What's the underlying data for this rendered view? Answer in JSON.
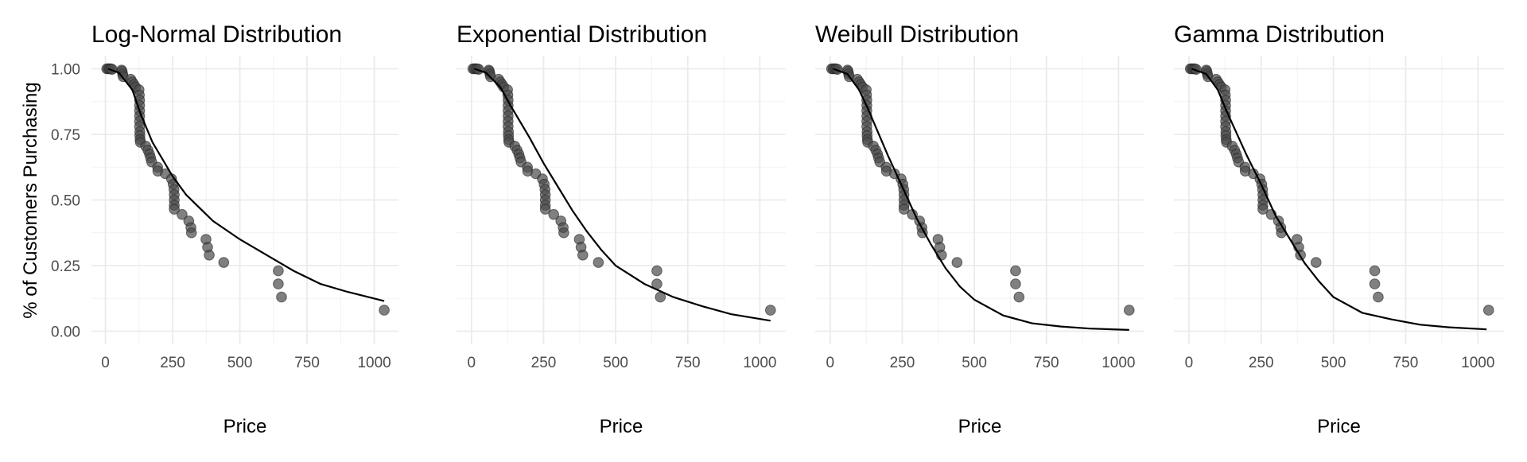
{
  "chart_data": [
    {
      "type": "scatter",
      "title": "Log-Normal Distribution",
      "xlabel": "Price",
      "ylabel": "% of Customers Purchasing",
      "curve": [
        [
          10,
          1.0
        ],
        [
          50,
          0.985
        ],
        [
          100,
          0.92
        ],
        [
          130,
          0.83
        ],
        [
          175,
          0.72
        ],
        [
          250,
          0.59
        ],
        [
          300,
          0.52
        ],
        [
          400,
          0.42
        ],
        [
          500,
          0.35
        ],
        [
          600,
          0.29
        ],
        [
          700,
          0.23
        ],
        [
          800,
          0.18
        ],
        [
          900,
          0.15
        ],
        [
          1037,
          0.115
        ]
      ]
    },
    {
      "type": "scatter",
      "title": "Exponential Distribution",
      "xlabel": "Price",
      "curve": [
        [
          10,
          1.0
        ],
        [
          50,
          0.985
        ],
        [
          100,
          0.93
        ],
        [
          130,
          0.87
        ],
        [
          200,
          0.74
        ],
        [
          250,
          0.64
        ],
        [
          300,
          0.55
        ],
        [
          350,
          0.46
        ],
        [
          400,
          0.38
        ],
        [
          450,
          0.31
        ],
        [
          500,
          0.25
        ],
        [
          600,
          0.18
        ],
        [
          700,
          0.13
        ],
        [
          800,
          0.095
        ],
        [
          900,
          0.065
        ],
        [
          1037,
          0.04
        ]
      ]
    },
    {
      "type": "scatter",
      "title": "Weibull Distribution",
      "xlabel": "Price",
      "curve": [
        [
          10,
          1.0
        ],
        [
          60,
          0.98
        ],
        [
          100,
          0.92
        ],
        [
          130,
          0.85
        ],
        [
          200,
          0.67
        ],
        [
          250,
          0.55
        ],
        [
          300,
          0.43
        ],
        [
          350,
          0.33
        ],
        [
          400,
          0.24
        ],
        [
          450,
          0.17
        ],
        [
          500,
          0.12
        ],
        [
          600,
          0.06
        ],
        [
          700,
          0.03
        ],
        [
          800,
          0.018
        ],
        [
          900,
          0.01
        ],
        [
          1037,
          0.005
        ]
      ]
    },
    {
      "type": "scatter",
      "title": "Gamma Distribution",
      "xlabel": "Price",
      "curve": [
        [
          10,
          1.0
        ],
        [
          60,
          0.98
        ],
        [
          100,
          0.92
        ],
        [
          130,
          0.84
        ],
        [
          200,
          0.67
        ],
        [
          250,
          0.56
        ],
        [
          300,
          0.44
        ],
        [
          350,
          0.35
        ],
        [
          400,
          0.26
        ],
        [
          450,
          0.19
        ],
        [
          500,
          0.13
        ],
        [
          600,
          0.07
        ],
        [
          700,
          0.045
        ],
        [
          800,
          0.025
        ],
        [
          900,
          0.015
        ],
        [
          1030,
          0.007
        ]
      ]
    }
  ],
  "shared": {
    "xlim": [
      -52,
      1090
    ],
    "ylim": [
      -0.05,
      1.05
    ],
    "xticks": [
      0,
      250,
      500,
      750,
      1000
    ],
    "xtick_labels": [
      "0",
      "250",
      "500",
      "750",
      "1000"
    ],
    "yticks": [
      0,
      0.25,
      0.5,
      0.75,
      1.0
    ],
    "ytick_labels": [
      "0.00",
      "0.25",
      "0.50",
      "0.75",
      "1.00"
    ],
    "grid": true,
    "points": [
      [
        5,
        1.0
      ],
      [
        10,
        1.0
      ],
      [
        15,
        1.0
      ],
      [
        20,
        1.0
      ],
      [
        25,
        0.998
      ],
      [
        60,
        0.995
      ],
      [
        62,
        0.99
      ],
      [
        64,
        0.98
      ],
      [
        66,
        0.97
      ],
      [
        94,
        0.96
      ],
      [
        100,
        0.95
      ],
      [
        106,
        0.94
      ],
      [
        112,
        0.93
      ],
      [
        125,
        0.92
      ],
      [
        126,
        0.9
      ],
      [
        127,
        0.88
      ],
      [
        127,
        0.86
      ],
      [
        127,
        0.84
      ],
      [
        127,
        0.82
      ],
      [
        127,
        0.8
      ],
      [
        127,
        0.78
      ],
      [
        128,
        0.76
      ],
      [
        128,
        0.745
      ],
      [
        129,
        0.73
      ],
      [
        130,
        0.72
      ],
      [
        150,
        0.705
      ],
      [
        158,
        0.69
      ],
      [
        164,
        0.675
      ],
      [
        168,
        0.66
      ],
      [
        172,
        0.645
      ],
      [
        194,
        0.625
      ],
      [
        195,
        0.61
      ],
      [
        223,
        0.6
      ],
      [
        246,
        0.58
      ],
      [
        252,
        0.56
      ],
      [
        255,
        0.54
      ],
      [
        256,
        0.52
      ],
      [
        256,
        0.5
      ],
      [
        256,
        0.48
      ],
      [
        256,
        0.465
      ],
      [
        285,
        0.445
      ],
      [
        310,
        0.42
      ],
      [
        318,
        0.395
      ],
      [
        320,
        0.375
      ],
      [
        374,
        0.35
      ],
      [
        380,
        0.32
      ],
      [
        386,
        0.29
      ],
      [
        440,
        0.262
      ],
      [
        643,
        0.23
      ],
      [
        643,
        0.18
      ],
      [
        655,
        0.13
      ],
      [
        1037,
        0.08
      ]
    ]
  }
}
